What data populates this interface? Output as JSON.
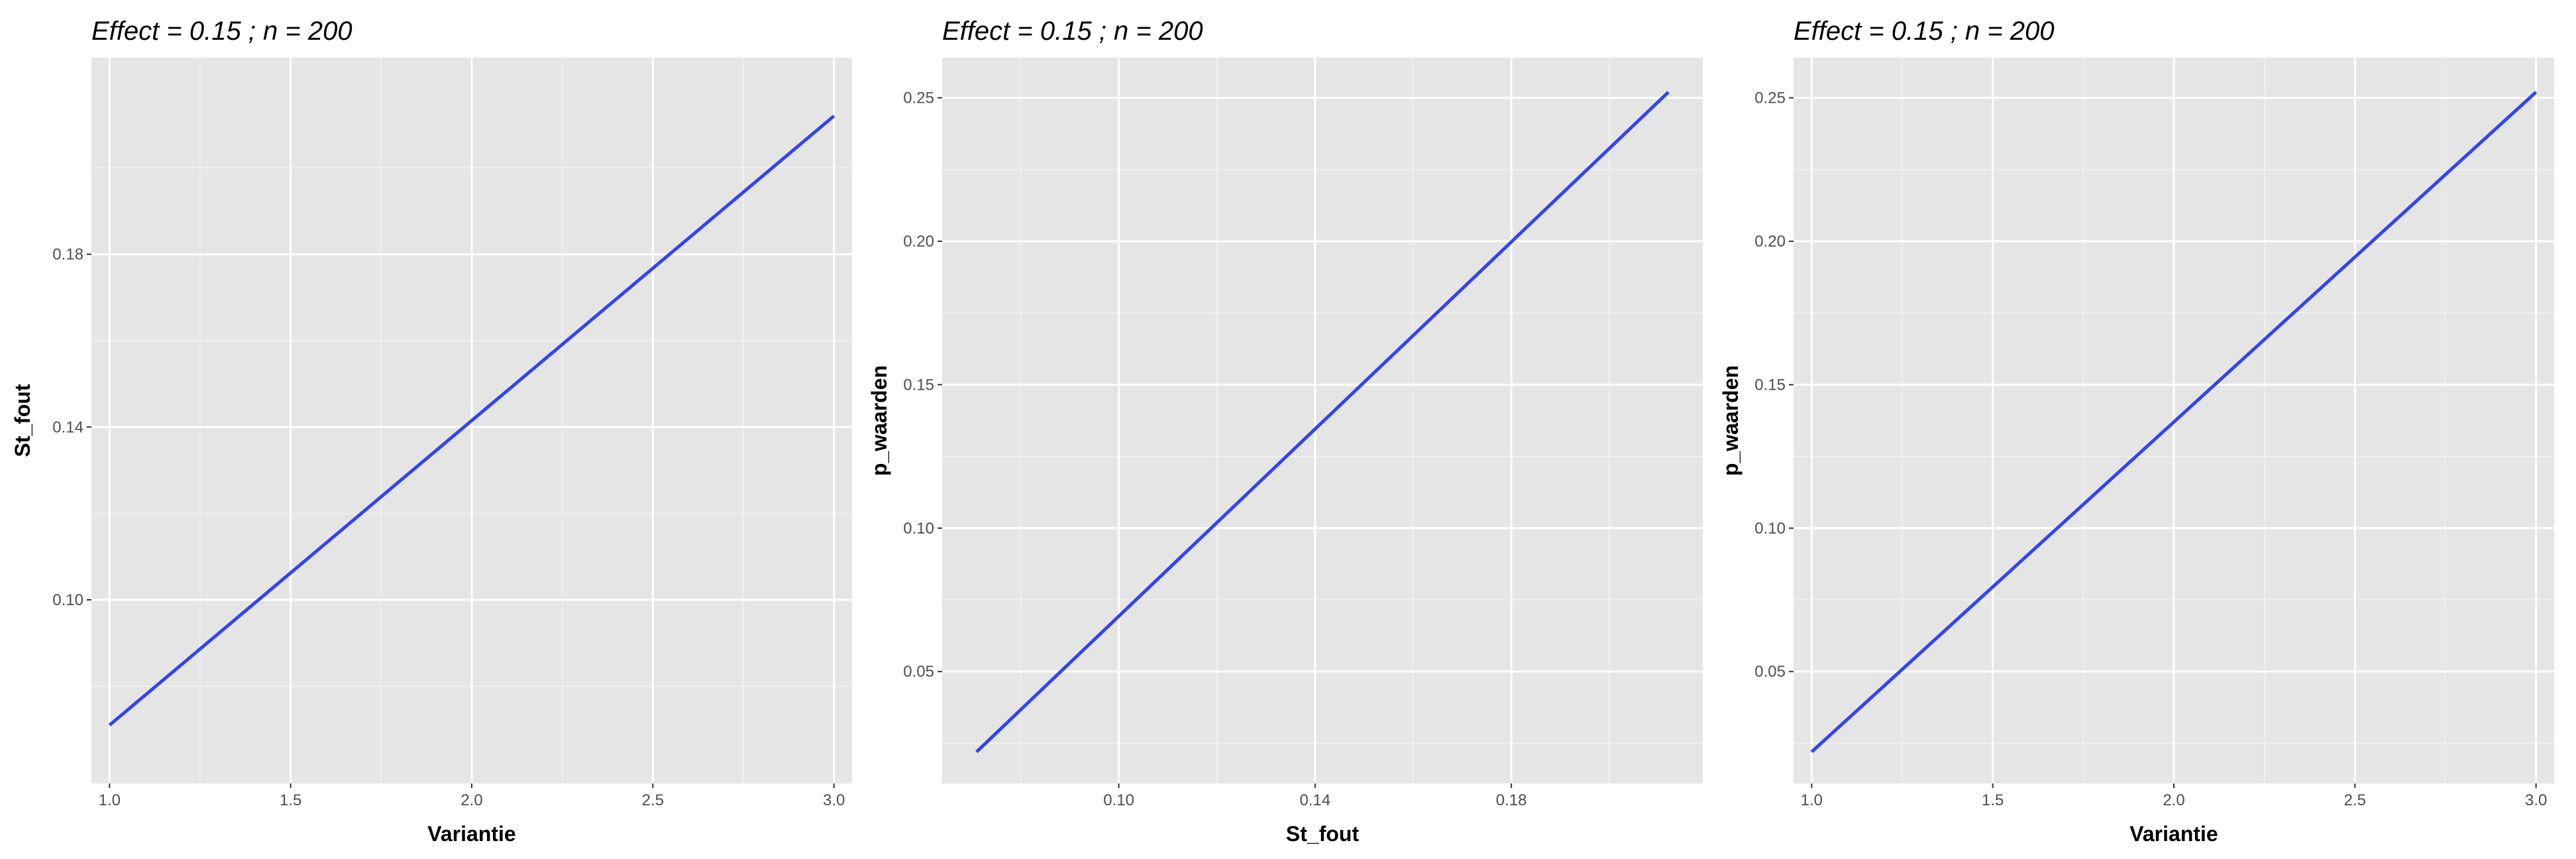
{
  "chart_data": [
    {
      "type": "line",
      "title": "Effect = 0.15 ; n = 200",
      "xlabel": "Variantie",
      "ylabel": "St_fout",
      "xlim": [
        0.95,
        3.05
      ],
      "ylim": [
        0.0575,
        0.2255
      ],
      "xticks": [
        1.0,
        1.5,
        2.0,
        2.5,
        3.0
      ],
      "xtick_labels": [
        "1.0",
        "1.5",
        "2.0",
        "2.5",
        "3.0"
      ],
      "yticks": [
        0.1,
        0.14,
        0.18
      ],
      "ytick_labels": [
        "0.10",
        "0.14",
        "0.18"
      ],
      "grid": true,
      "series": [
        {
          "color": "#3344ee",
          "x": [
            1.0,
            3.0
          ],
          "y": [
            0.071,
            0.212
          ]
        }
      ]
    },
    {
      "type": "line",
      "title": "Effect = 0.15 ; n = 200",
      "xlabel": "St_fout",
      "ylabel": "p_waarden",
      "xlim": [
        0.064,
        0.219
      ],
      "ylim": [
        0.011,
        0.264
      ],
      "xticks": [
        0.1,
        0.14,
        0.18
      ],
      "xtick_labels": [
        "0.10",
        "0.14",
        "0.18"
      ],
      "yticks": [
        0.05,
        0.1,
        0.15,
        0.2,
        0.25
      ],
      "ytick_labels": [
        "0.05",
        "0.10",
        "0.15",
        "0.20",
        "0.25"
      ],
      "grid": true,
      "series": [
        {
          "color": "#3344ee",
          "x": [
            0.071,
            0.212
          ],
          "y": [
            0.022,
            0.252
          ]
        }
      ]
    },
    {
      "type": "line",
      "title": "Effect = 0.15 ; n = 200",
      "xlabel": "Variantie",
      "ylabel": "p_waarden",
      "xlim": [
        0.95,
        3.05
      ],
      "ylim": [
        0.011,
        0.264
      ],
      "xticks": [
        1.0,
        1.5,
        2.0,
        2.5,
        3.0
      ],
      "xtick_labels": [
        "1.0",
        "1.5",
        "2.0",
        "2.5",
        "3.0"
      ],
      "yticks": [
        0.05,
        0.1,
        0.15,
        0.2,
        0.25
      ],
      "ytick_labels": [
        "0.05",
        "0.10",
        "0.15",
        "0.20",
        "0.25"
      ],
      "grid": true,
      "series": [
        {
          "color": "#3344ee",
          "x": [
            1.0,
            3.0
          ],
          "y": [
            0.022,
            0.252
          ]
        }
      ]
    }
  ]
}
